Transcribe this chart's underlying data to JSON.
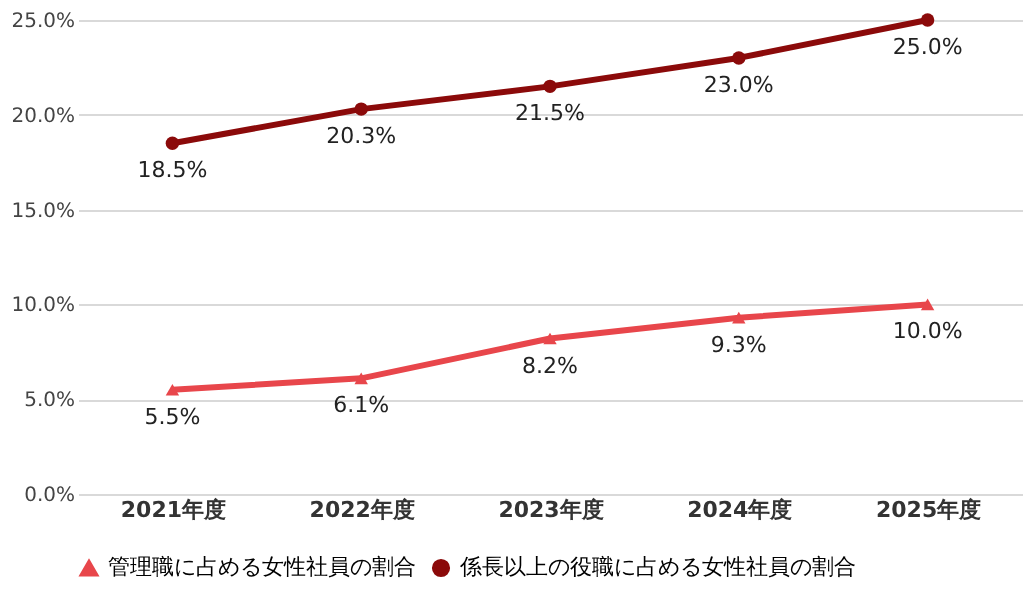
{
  "chart_data": {
    "type": "line",
    "categories": [
      "2021年度",
      "2022年度",
      "2023年度",
      "2024年度",
      "2025年度"
    ],
    "series": [
      {
        "name": "管理職に占める女性社員の割合",
        "color": "#e8464b",
        "marker": "triangle",
        "values": [
          5.5,
          6.1,
          8.2,
          9.3,
          10.0
        ],
        "value_labels": [
          "5.5%",
          "6.1%",
          "8.2%",
          "9.3%",
          "10.0%"
        ]
      },
      {
        "name": "係長以上の役職に占める女性社員の割合",
        "color": "#8b0a0a",
        "marker": "circle",
        "values": [
          18.5,
          20.3,
          21.5,
          23.0,
          25.0
        ],
        "value_labels": [
          "18.5%",
          "20.3%",
          "21.5%",
          "23.0%",
          "25.0%"
        ]
      }
    ],
    "ylim": [
      0,
      25
    ],
    "yticks": [
      {
        "value": 0,
        "label": "0.0%"
      },
      {
        "value": 5,
        "label": "5.0%"
      },
      {
        "value": 10,
        "label": "10.0%"
      },
      {
        "value": 15,
        "label": "15.0%"
      },
      {
        "value": 20,
        "label": "20.0%"
      },
      {
        "value": 25,
        "label": "25.0%"
      }
    ],
    "grid": "y",
    "legend": "bottom",
    "line_style": "solid"
  }
}
